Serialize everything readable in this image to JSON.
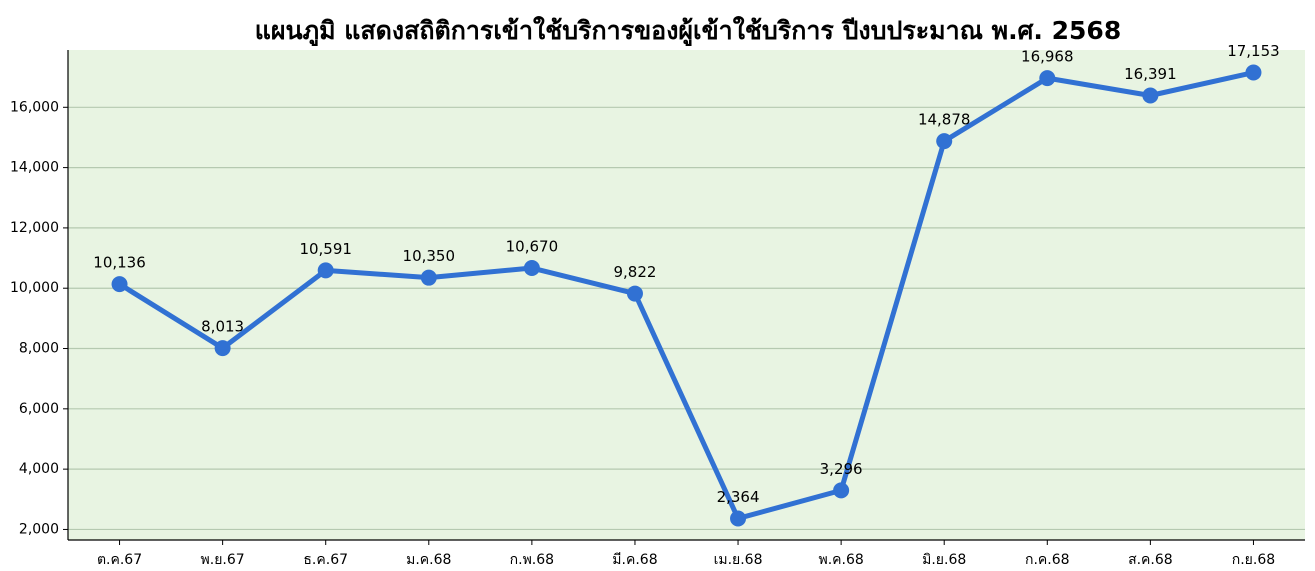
{
  "chart_data": {
    "type": "line",
    "title": "แผนภูมิ แสดงสถิติการเข้าใช้บริการของผู้เข้าใช้บริการ ปีงบประมาณ พ.ศ. 2568",
    "categories": [
      "ต.ค.67",
      "พ.ย.67",
      "ธ.ค.67",
      "ม.ค.68",
      "ก.พ.68",
      "มี.ค.68",
      "เม.ย.68",
      "พ.ค.68",
      "มิ.ย.68",
      "ก.ค.68",
      "ส.ค.68",
      "ก.ย.68"
    ],
    "series": [
      {
        "name": "ผู้เข้าใช้บริการ",
        "color": "#3171d3",
        "values": [
          10136,
          8013,
          10591,
          10350,
          10670,
          9822,
          2364,
          3296,
          14878,
          16968,
          16391,
          17153
        ],
        "value_labels": [
          "10,136",
          "8,013",
          "10,591",
          "10,350",
          "10,670",
          "9,822",
          "2,364",
          "3,296",
          "14,878",
          "16,968",
          "16,391",
          "17,153"
        ]
      }
    ],
    "ylim": [
      1650,
      17900
    ],
    "yticks": [
      {
        "value": 2000,
        "label": "2,000"
      },
      {
        "value": 4000,
        "label": "4,000"
      },
      {
        "value": 6000,
        "label": "6,000"
      },
      {
        "value": 8000,
        "label": "8,000"
      },
      {
        "value": 10000,
        "label": "10,000"
      },
      {
        "value": 12000,
        "label": "12,000"
      },
      {
        "value": 14000,
        "label": "14,000"
      },
      {
        "value": 16000,
        "label": "16,000"
      }
    ],
    "grid": true,
    "background": "#e8f4e2"
  }
}
